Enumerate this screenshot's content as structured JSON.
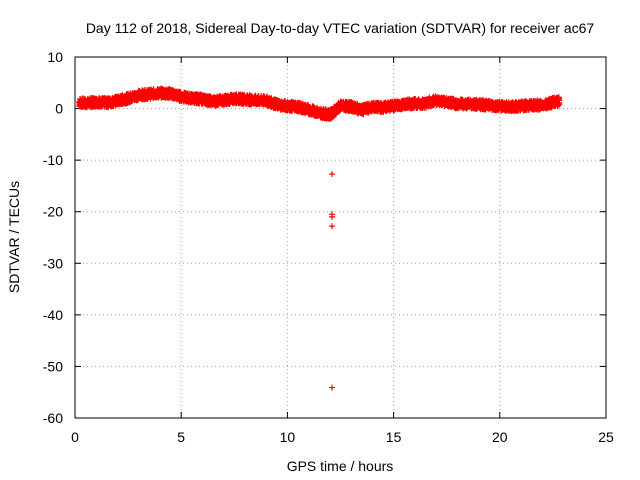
{
  "chart_data": {
    "type": "scatter",
    "title": "Day 112 of 2018, Sidereal Day-to-day VTEC variation (SDTVAR) for receiver ac67",
    "xlabel": "GPS time / hours",
    "ylabel": "SDTVAR / TECUs",
    "xlim": [
      0,
      25
    ],
    "ylim": [
      -60,
      10
    ],
    "xticks": [
      "0",
      "5",
      "10",
      "15",
      "20",
      "25"
    ],
    "yticks": [
      "10",
      "0",
      "-10",
      "-20",
      "-30",
      "-40",
      "-50",
      "-60"
    ],
    "grid": true,
    "marker": "+",
    "series": [
      {
        "name": "SDTVAR",
        "color": "#ff0000",
        "band": {
          "x": [
            0.2,
            0.5,
            1.0,
            1.5,
            2.0,
            2.5,
            3.0,
            3.5,
            4.0,
            4.5,
            5.0,
            5.5,
            6.0,
            6.5,
            7.0,
            7.5,
            8.0,
            8.5,
            9.0,
            9.5,
            10.0,
            10.5,
            11.0,
            11.5,
            12.0,
            12.5,
            13.0,
            13.5,
            14.0,
            14.5,
            15.0,
            15.5,
            16.0,
            16.5,
            17.0,
            17.5,
            18.0,
            18.5,
            19.0,
            19.5,
            20.0,
            20.5,
            21.0,
            21.5,
            22.0,
            22.5,
            22.8
          ],
          "y": [
            1.2,
            1.0,
            1.3,
            1.1,
            1.5,
            2.0,
            2.6,
            2.8,
            3.0,
            2.9,
            2.3,
            2.0,
            1.8,
            1.4,
            1.6,
            1.9,
            1.8,
            1.6,
            1.5,
            0.8,
            0.5,
            0.3,
            -0.2,
            -0.8,
            -1.2,
            0.5,
            0.4,
            -0.3,
            0.3,
            0.2,
            0.5,
            0.8,
            1.0,
            1.0,
            1.6,
            1.2,
            0.9,
            0.9,
            0.8,
            0.6,
            0.5,
            0.3,
            0.5,
            0.6,
            0.7,
            1.2,
            1.4
          ],
          "spread": 0.9
        },
        "outliers": [
          {
            "x": 12.1,
            "y": -12.7
          },
          {
            "x": 12.1,
            "y": -20.5
          },
          {
            "x": 12.1,
            "y": -21.0
          },
          {
            "x": 12.1,
            "y": -22.8
          },
          {
            "x": 12.1,
            "y": -54.1
          }
        ]
      }
    ]
  }
}
